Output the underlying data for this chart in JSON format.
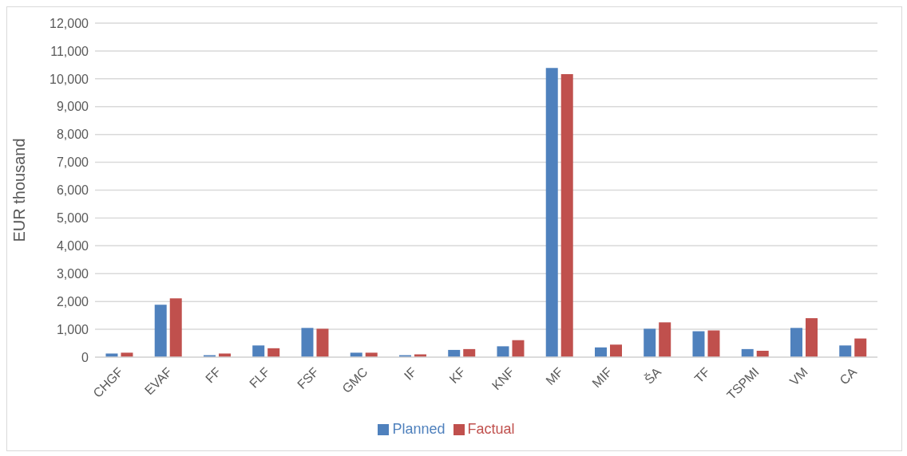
{
  "chart_data": {
    "type": "bar",
    "ylabel": "EUR thousand",
    "categories": [
      "CHGF",
      "EVAF",
      "FF",
      "FLF",
      "FSF",
      "GMC",
      "IF",
      "KF",
      "KNF",
      "MF",
      "MIF",
      "ŠA",
      "TF",
      "TSPMI",
      "VM",
      "CA"
    ],
    "series": [
      {
        "name": "Planned",
        "color": "#4f81bd",
        "values": [
          130,
          1880,
          70,
          420,
          1050,
          160,
          70,
          260,
          390,
          10390,
          350,
          1020,
          930,
          290,
          1050,
          420
        ]
      },
      {
        "name": "Factual",
        "color": "#c0504d",
        "values": [
          160,
          2110,
          130,
          320,
          1020,
          160,
          100,
          290,
          610,
          10170,
          450,
          1250,
          960,
          230,
          1400,
          670
        ]
      }
    ],
    "ylim": [
      0,
      12000
    ],
    "yticks": [
      {
        "value": 0,
        "label": "0"
      },
      {
        "value": 1000,
        "label": "1,000"
      },
      {
        "value": 2000,
        "label": "2,000"
      },
      {
        "value": 3000,
        "label": "3,000"
      },
      {
        "value": 4000,
        "label": "4,000"
      },
      {
        "value": 5000,
        "label": "5,000"
      },
      {
        "value": 6000,
        "label": "6,000"
      },
      {
        "value": 7000,
        "label": "7,000"
      },
      {
        "value": 8000,
        "label": "8,000"
      },
      {
        "value": 9000,
        "label": "9,000"
      },
      {
        "value": 10000,
        "label": "10,000"
      },
      {
        "value": 11000,
        "label": "11,000"
      },
      {
        "value": 12000,
        "label": "12,000"
      }
    ],
    "grid": "y",
    "legend": "bottom"
  }
}
